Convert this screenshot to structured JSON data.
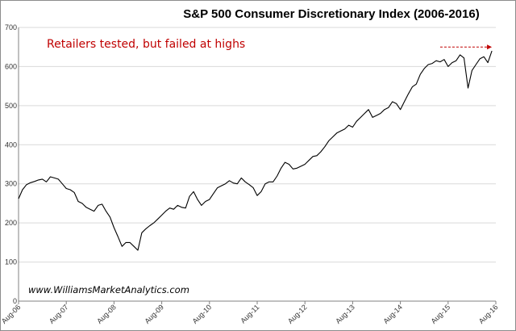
{
  "chart_data": {
    "type": "line",
    "title": "S&P 500 Consumer Discretionary Index (2006-2016)",
    "xlabel": "",
    "ylabel": "",
    "ylim": [
      0,
      700
    ],
    "yticks": [
      0,
      100,
      200,
      300,
      400,
      500,
      600,
      700
    ],
    "xlim": [
      "2006-08",
      "2016-08"
    ],
    "xticks": [
      "Aug-06",
      "Aug-07",
      "Aug-08",
      "Aug-09",
      "Aug-10",
      "Aug-11",
      "Aug-12",
      "Aug-13",
      "Aug-14",
      "Aug-15",
      "Aug-16"
    ],
    "grid": "horizontal",
    "legend": "none",
    "line_color": "#000000",
    "series": [
      {
        "x": [
          "2006-08",
          "2006-09",
          "2006-10",
          "2006-11",
          "2006-12",
          "2007-01",
          "2007-02",
          "2007-03",
          "2007-04",
          "2007-05",
          "2007-06",
          "2007-07",
          "2007-08",
          "2007-09",
          "2007-10",
          "2007-11",
          "2007-12",
          "2008-01",
          "2008-02",
          "2008-03",
          "2008-04",
          "2008-05",
          "2008-06",
          "2008-07",
          "2008-08",
          "2008-09",
          "2008-10",
          "2008-11",
          "2008-12",
          "2009-01",
          "2009-02",
          "2009-03",
          "2009-04",
          "2009-05",
          "2009-06",
          "2009-07",
          "2009-08",
          "2009-09",
          "2009-10",
          "2009-11",
          "2009-12",
          "2010-01",
          "2010-02",
          "2010-03",
          "2010-04",
          "2010-05",
          "2010-06",
          "2010-07",
          "2010-08",
          "2010-09",
          "2010-10",
          "2010-11",
          "2010-12",
          "2011-01",
          "2011-02",
          "2011-03",
          "2011-04",
          "2011-05",
          "2011-06",
          "2011-07",
          "2011-08",
          "2011-09",
          "2011-10",
          "2011-11",
          "2011-12",
          "2012-01",
          "2012-02",
          "2012-03",
          "2012-04",
          "2012-05",
          "2012-06",
          "2012-07",
          "2012-08",
          "2012-09",
          "2012-10",
          "2012-11",
          "2012-12",
          "2013-01",
          "2013-02",
          "2013-03",
          "2013-04",
          "2013-05",
          "2013-06",
          "2013-07",
          "2013-08",
          "2013-09",
          "2013-10",
          "2013-11",
          "2013-12",
          "2014-01",
          "2014-02",
          "2014-03",
          "2014-04",
          "2014-05",
          "2014-06",
          "2014-07",
          "2014-08",
          "2014-09",
          "2014-10",
          "2014-11",
          "2014-12",
          "2015-01",
          "2015-02",
          "2015-03",
          "2015-04",
          "2015-05",
          "2015-06",
          "2015-07",
          "2015-08",
          "2015-09",
          "2015-10",
          "2015-11",
          "2015-12",
          "2016-01",
          "2016-02",
          "2016-03",
          "2016-04",
          "2016-05",
          "2016-06",
          "2016-07"
        ],
        "y": [
          262,
          285,
          298,
          303,
          306,
          310,
          312,
          305,
          318,
          315,
          312,
          300,
          288,
          285,
          278,
          255,
          250,
          240,
          235,
          230,
          245,
          248,
          230,
          215,
          188,
          165,
          140,
          150,
          150,
          140,
          130,
          175,
          185,
          193,
          200,
          210,
          220,
          230,
          238,
          235,
          245,
          240,
          238,
          268,
          280,
          260,
          245,
          255,
          260,
          275,
          290,
          295,
          300,
          308,
          302,
          300,
          315,
          305,
          298,
          290,
          270,
          280,
          300,
          305,
          305,
          320,
          340,
          355,
          350,
          338,
          340,
          345,
          350,
          360,
          370,
          372,
          382,
          395,
          410,
          420,
          430,
          435,
          440,
          450,
          445,
          460,
          470,
          480,
          490,
          470,
          475,
          480,
          490,
          495,
          510,
          505,
          490,
          510,
          530,
          548,
          555,
          580,
          595,
          605,
          608,
          615,
          612,
          618,
          600,
          610,
          615,
          630,
          622,
          545,
          590,
          605,
          620,
          625,
          610,
          640
        ]
      }
    ],
    "annotations": [
      {
        "text": "Retailers tested, but failed at highs",
        "color": "#c00000",
        "arrow_level": 650,
        "arrow_from": "2015-06",
        "arrow_to": "2016-07"
      },
      {
        "text": "www.WilliamsMarketAnalytics.com"
      }
    ]
  }
}
